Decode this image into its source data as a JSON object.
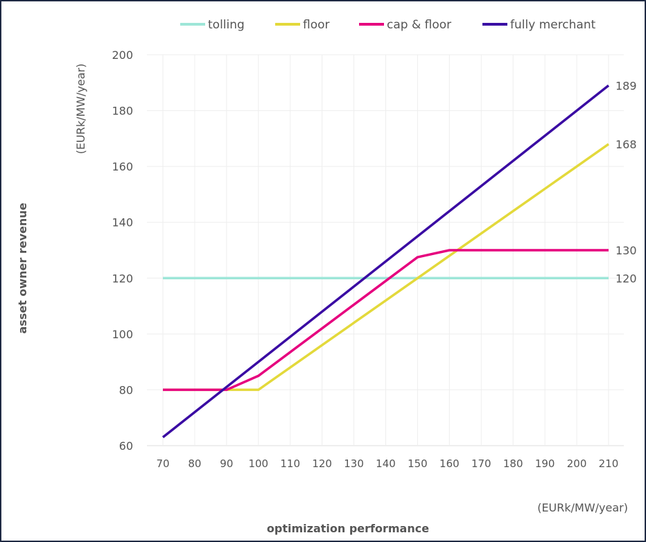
{
  "chart_data": {
    "type": "line",
    "xlabel": "optimization performance",
    "xunit": "(EURk/MW/year)",
    "ylabel": "asset owner revenue",
    "yunit": "(EURk/MW/year)",
    "x": [
      70,
      80,
      90,
      100,
      110,
      120,
      130,
      140,
      150,
      160,
      170,
      180,
      190,
      200,
      210
    ],
    "xlim": [
      70,
      210
    ],
    "ylim": [
      60,
      200
    ],
    "yticks": [
      60,
      80,
      100,
      120,
      140,
      160,
      180,
      200
    ],
    "grid": true,
    "legend_position": "top",
    "series": [
      {
        "name": "tolling",
        "color": "#9ee6d8",
        "values": [
          120,
          120,
          120,
          120,
          120,
          120,
          120,
          120,
          120,
          120,
          120,
          120,
          120,
          120,
          120
        ],
        "end_label": "120"
      },
      {
        "name": "floor",
        "color": "#e3d93b",
        "values": [
          80,
          80,
          80,
          80,
          88,
          96,
          104,
          112,
          120,
          128,
          136,
          144,
          152,
          160,
          168
        ],
        "end_label": "168"
      },
      {
        "name": "cap & floor",
        "color": "#e6007e",
        "values": [
          80,
          80,
          80,
          85,
          93.5,
          102,
          110.5,
          119,
          127.5,
          130,
          130,
          130,
          130,
          130,
          130
        ],
        "end_label": "130"
      },
      {
        "name": "fully merchant",
        "color": "#3a0ca3",
        "values": [
          63,
          72,
          81,
          90,
          99,
          108,
          117,
          126,
          135,
          144,
          153,
          162,
          171,
          180,
          189
        ],
        "end_label": "189"
      }
    ]
  }
}
